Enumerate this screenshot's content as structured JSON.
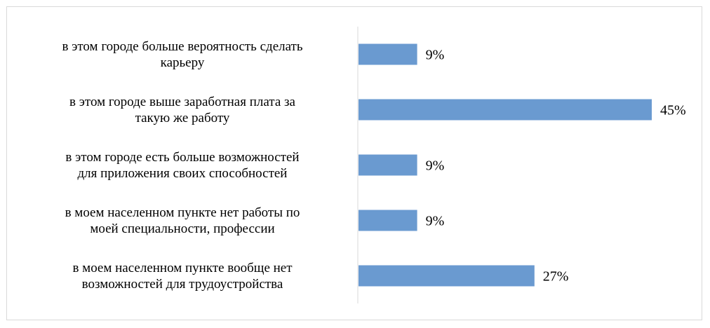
{
  "chart_data": {
    "type": "bar",
    "orientation": "horizontal",
    "categories": [
      [
        "в этом городе больше вероятность сделать",
        "карьеру"
      ],
      [
        "в этом городе выше заработная плата за",
        "такую же работу"
      ],
      [
        "в этом городе есть больше возможностей",
        "для приложения своих способностей"
      ],
      [
        "в моем населенном пункте нет работы по",
        "моей специальности, профессии"
      ],
      [
        "в моем населенном пункте вообще нет",
        "возможностей для трудоустройства"
      ]
    ],
    "values": [
      9,
      45,
      9,
      9,
      27
    ],
    "value_labels": [
      "9%",
      "45%",
      "9%",
      "9%",
      "27%"
    ],
    "unit": "%",
    "xlim": [
      0,
      45
    ],
    "grid": false,
    "legend": "none",
    "colors": {
      "bar": "#6a9ad0",
      "axis": "#d9d9d9",
      "text": "#000000"
    }
  }
}
